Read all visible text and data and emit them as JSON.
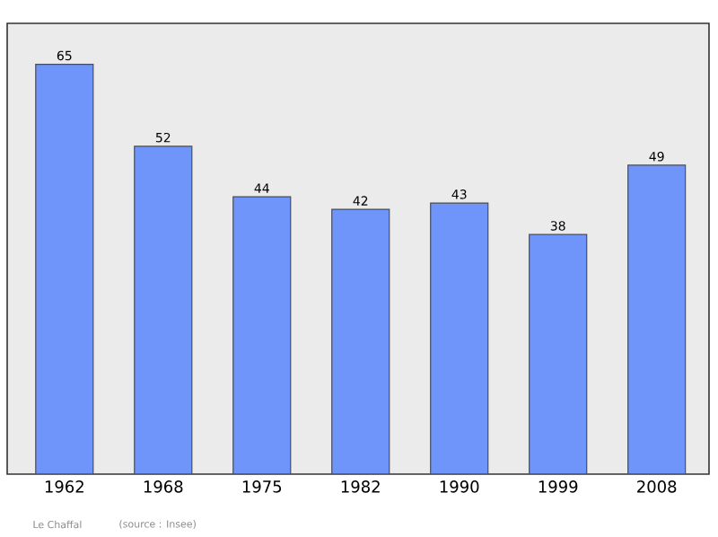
{
  "chart_data": {
    "type": "bar",
    "categories": [
      "1962",
      "1968",
      "1975",
      "1982",
      "1990",
      "1999",
      "2008"
    ],
    "values": [
      65,
      52,
      44,
      42,
      43,
      38,
      49
    ],
    "color": "#7095fa",
    "data_labels": true,
    "annotations": [
      "Le Chaffal",
      "(source : Insee)"
    ]
  }
}
